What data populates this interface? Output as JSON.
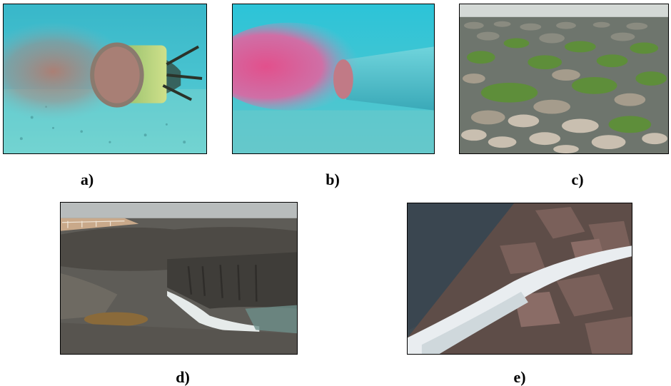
{
  "figure": {
    "panels": [
      {
        "label": "a)",
        "scene": "underwater-pipe-outfall-plume"
      },
      {
        "label": "b)",
        "scene": "underwater-pipe-pink-dye-plume"
      },
      {
        "label": "c)",
        "scene": "tidal-rocky-shore-with-algae"
      },
      {
        "label": "d)",
        "scene": "coastal-rock-outfall-discharge"
      },
      {
        "label": "e)",
        "scene": "rock-breakwater-waterfall-discharge"
      }
    ]
  }
}
